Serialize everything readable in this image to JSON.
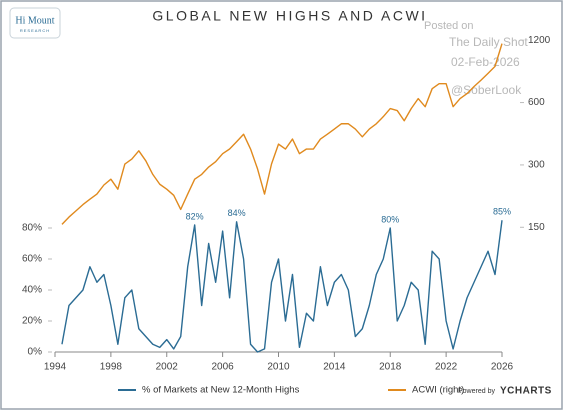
{
  "chart_data": {
    "type": "line",
    "title": "GLOBAL NEW HIGHS AND ACWI",
    "logo": {
      "name": "Hi Mount",
      "sub": "RESEARCH"
    },
    "watermark": [
      "Posted on",
      "The Daily Shot",
      "02-Feb-2026",
      "@SoberLook"
    ],
    "credit": {
      "prefix": "Powered by",
      "brand": "YCHARTS"
    },
    "x": [
      1994.5,
      1995,
      1995.5,
      1996,
      1996.5,
      1997,
      1997.5,
      1998,
      1998.5,
      1999,
      1999.5,
      2000,
      2000.5,
      2001,
      2001.5,
      2002,
      2002.5,
      2003,
      2003.5,
      2004,
      2004.5,
      2005,
      2005.5,
      2006,
      2006.5,
      2007,
      2007.5,
      2008,
      2008.5,
      2009,
      2009.5,
      2010,
      2010.5,
      2011,
      2011.5,
      2012,
      2012.5,
      2013,
      2013.5,
      2014,
      2014.5,
      2015,
      2015.5,
      2016,
      2016.5,
      2017,
      2017.5,
      2018,
      2018.5,
      2019,
      2019.5,
      2020,
      2020.5,
      2021,
      2021.5,
      2022,
      2022.5,
      2023,
      2023.5,
      2024,
      2024.5,
      2025,
      2025.5,
      2026
    ],
    "series": [
      {
        "name": "% of Markets at New 12-Month Highs",
        "color": "#2b6c94",
        "axis": "y",
        "values": [
          5,
          30,
          35,
          40,
          55,
          45,
          50,
          30,
          5,
          35,
          40,
          15,
          10,
          5,
          3,
          8,
          2,
          10,
          55,
          82,
          30,
          70,
          45,
          78,
          35,
          84,
          60,
          5,
          0,
          2,
          45,
          60,
          20,
          50,
          3,
          25,
          20,
          55,
          30,
          45,
          50,
          40,
          10,
          15,
          30,
          50,
          60,
          80,
          20,
          30,
          45,
          40,
          5,
          65,
          60,
          20,
          2,
          20,
          35,
          45,
          55,
          65,
          50,
          85
        ],
        "value_labels": [
          null,
          null,
          null,
          null,
          null,
          null,
          null,
          null,
          null,
          null,
          null,
          null,
          null,
          null,
          null,
          null,
          null,
          null,
          null,
          "82%",
          null,
          null,
          null,
          null,
          null,
          "84%",
          null,
          null,
          null,
          null,
          null,
          null,
          null,
          null,
          null,
          null,
          null,
          null,
          null,
          null,
          null,
          null,
          null,
          null,
          null,
          null,
          null,
          "80%",
          null,
          null,
          null,
          null,
          null,
          null,
          null,
          null,
          null,
          null,
          null,
          null,
          null,
          null,
          null,
          "85%"
        ]
      },
      {
        "name": "ACWI (right)",
        "color": "#e08a1e",
        "axis": "y2",
        "values": [
          155,
          168,
          180,
          193,
          205,
          217,
          240,
          256,
          229,
          303,
          320,
          351,
          314,
          270,
          242,
          229,
          214,
          183,
          217,
          256,
          270,
          293,
          311,
          340,
          358,
          388,
          422,
          358,
          287,
          217,
          303,
          378,
          358,
          400,
          340,
          358,
          358,
          400,
          422,
          447,
          474,
          474,
          447,
          410,
          447,
          474,
          513,
          561,
          549,
          490,
          561,
          627,
          573,
          700,
          740,
          740,
          573,
          627,
          663,
          717,
          770,
          830,
          897,
          1155
        ]
      }
    ],
    "xlim": [
      1994,
      2026
    ],
    "xticks": [
      1994,
      1998,
      2002,
      2006,
      2010,
      2014,
      2018,
      2022,
      2026
    ],
    "ylim": [
      0,
      208
    ],
    "yticks": [
      {
        "value": 0,
        "label": "0%"
      },
      {
        "value": 20,
        "label": "20%"
      },
      {
        "value": 40,
        "label": "40%"
      },
      {
        "value": 60,
        "label": "60%"
      },
      {
        "value": 80,
        "label": "80%"
      }
    ],
    "y2lim": [
      37.5,
      1350
    ],
    "y2ticks": [
      150,
      300,
      600,
      1200
    ],
    "y2log": true,
    "grid": false
  }
}
